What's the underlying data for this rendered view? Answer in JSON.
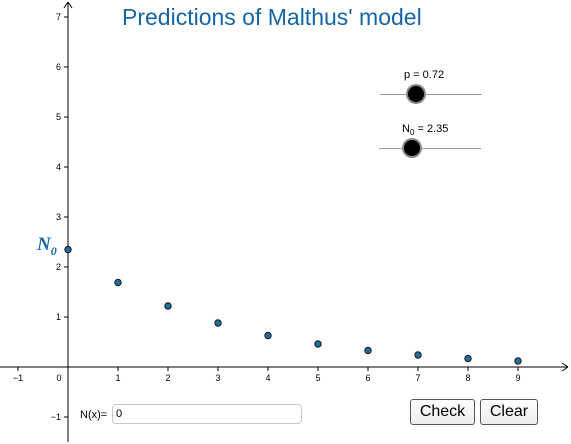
{
  "title": "Predictions of Malthus' model",
  "graph": {
    "x_ticks": [
      "−1",
      "0",
      "1",
      "2",
      "3",
      "4",
      "5",
      "6",
      "7",
      "8",
      "9"
    ],
    "y_ticks": [
      "−1",
      "1",
      "2",
      "3",
      "4",
      "5",
      "6",
      "7"
    ],
    "point_color": "#1f6f9e",
    "label_color": "#1565a8"
  },
  "n0_label": {
    "base": "N",
    "sub": "0"
  },
  "sliders": {
    "p": {
      "caption": "p = 0.72",
      "value": 0.72,
      "position_fraction": 0.36
    },
    "n0": {
      "caption_base": "N",
      "caption_sub": "0",
      "caption_rest": " = 2.35",
      "value": 2.35,
      "position_fraction": 0.33
    }
  },
  "chart_data": {
    "type": "scatter",
    "title": "Predictions of Malthus' model",
    "x": [
      0,
      1,
      2,
      3,
      4,
      5,
      6,
      7,
      8,
      9
    ],
    "y": [
      2.35,
      1.69,
      1.22,
      0.88,
      0.63,
      0.46,
      0.33,
      0.24,
      0.17,
      0.12
    ],
    "xlim": [
      -1,
      9
    ],
    "ylim": [
      -1,
      7
    ],
    "grid": false
  },
  "input": {
    "label": "N(x)=",
    "value": "0"
  },
  "buttons": {
    "check": "Check",
    "clear": "Clear"
  }
}
